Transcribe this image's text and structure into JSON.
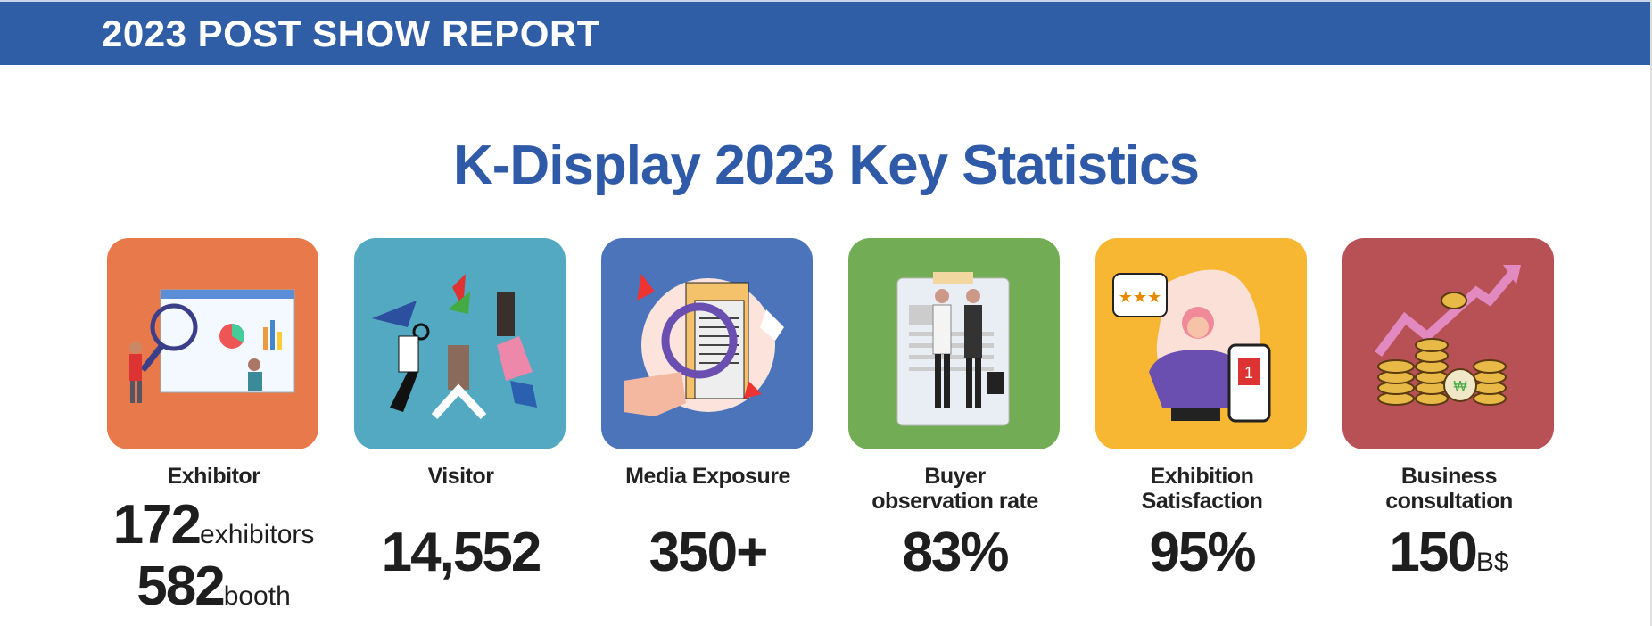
{
  "header": {
    "title": "2023 POST SHOW REPORT",
    "color": "#2F5DA6"
  },
  "main_title": "K-Display 2023 Key Statistics",
  "title_color": "#2E5AA8",
  "stats": [
    {
      "label": "Exhibitor",
      "value1": "172",
      "unit1": "exhibitors",
      "value2": "582",
      "unit2": "booth",
      "color": "#E8794A",
      "icon": "dashboard-magnifier-illustration"
    },
    {
      "label": "Visitor",
      "value": "14,552",
      "color": "#52A9C1",
      "icon": "jumping-people-illustration"
    },
    {
      "label": "Media Exposure",
      "value": "350+",
      "color": "#4B74BA",
      "icon": "magnifier-documents-illustration"
    },
    {
      "label1": "Buyer",
      "label2": "observation rate",
      "value": "83%",
      "color": "#72AD55",
      "icon": "handshake-illustration"
    },
    {
      "label1": "Exhibition",
      "label2": "Satisfaction",
      "value": "95%",
      "color": "#F7B733",
      "icon": "rating-trophy-phone-illustration"
    },
    {
      "label1": "Business",
      "label2": "consultation",
      "value": "150",
      "unit": "B$",
      "color": "#B85155",
      "icon": "coins-growth-illustration"
    }
  ]
}
